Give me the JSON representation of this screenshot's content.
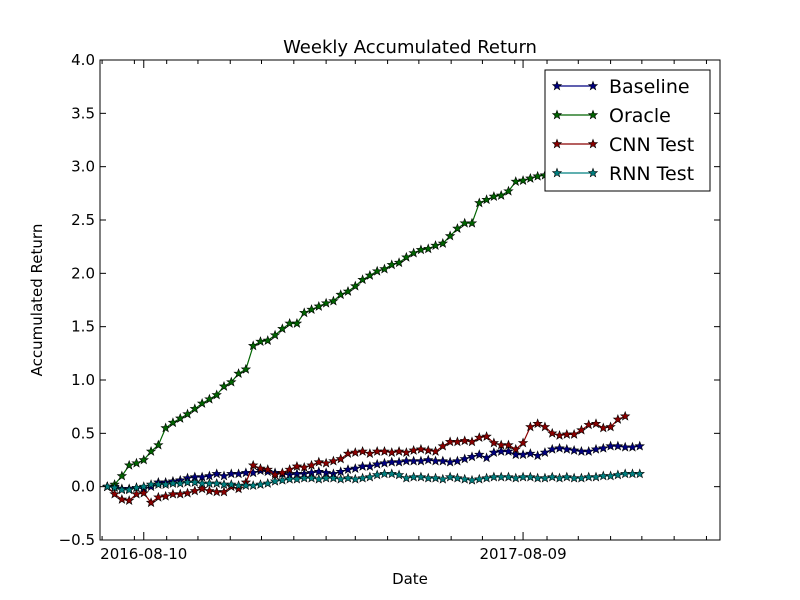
{
  "chart_data": {
    "type": "line",
    "title": "Weekly Accumulated Return",
    "xlabel": "Date",
    "ylabel": "Accumulated Return",
    "ylim": [
      -0.5,
      4.0
    ],
    "yticks": [
      "−0.5",
      "0.0",
      "0.5",
      "1.0",
      "1.5",
      "2.0",
      "2.5",
      "3.0",
      "3.5",
      "4.0"
    ],
    "ytick_values": [
      -0.5,
      0.0,
      0.5,
      1.0,
      1.5,
      2.0,
      2.5,
      3.0,
      3.5,
      4.0
    ],
    "xlim": [
      "2016-06-29",
      "2018-02-14"
    ],
    "xticks": [
      "2016-08-10",
      "2017-08-09"
    ],
    "x_start": "2016-07-06",
    "x_step_days": 7,
    "grid": false,
    "legend_position": "top-right",
    "series": [
      {
        "name": "Baseline",
        "color": "#000080",
        "marker": "star",
        "values": [
          0.0,
          0.0,
          -0.02,
          -0.02,
          -0.01,
          -0.02,
          0.0,
          0.04,
          0.04,
          0.05,
          0.06,
          0.08,
          0.09,
          0.09,
          0.1,
          0.12,
          0.1,
          0.12,
          0.12,
          0.13,
          0.13,
          0.15,
          0.14,
          0.13,
          0.12,
          0.11,
          0.12,
          0.12,
          0.13,
          0.14,
          0.13,
          0.12,
          0.14,
          0.16,
          0.17,
          0.19,
          0.19,
          0.21,
          0.22,
          0.23,
          0.23,
          0.24,
          0.24,
          0.24,
          0.25,
          0.24,
          0.24,
          0.23,
          0.24,
          0.26,
          0.28,
          0.3,
          0.27,
          0.32,
          0.33,
          0.33,
          0.3,
          0.3,
          0.31,
          0.29,
          0.32,
          0.35,
          0.36,
          0.35,
          0.34,
          0.33,
          0.33,
          0.35,
          0.36,
          0.38,
          0.38,
          0.37,
          0.37,
          0.38
        ]
      },
      {
        "name": "Oracle",
        "color": "#006400",
        "marker": "star",
        "values": [
          0.0,
          0.02,
          0.1,
          0.2,
          0.22,
          0.25,
          0.33,
          0.39,
          0.55,
          0.6,
          0.64,
          0.68,
          0.73,
          0.78,
          0.82,
          0.86,
          0.94,
          0.98,
          1.06,
          1.1,
          1.32,
          1.36,
          1.37,
          1.42,
          1.48,
          1.53,
          1.53,
          1.63,
          1.66,
          1.69,
          1.72,
          1.74,
          1.8,
          1.83,
          1.88,
          1.94,
          1.98,
          2.02,
          2.04,
          2.08,
          2.1,
          2.15,
          2.19,
          2.22,
          2.23,
          2.26,
          2.28,
          2.35,
          2.42,
          2.47,
          2.47,
          2.66,
          2.69,
          2.72,
          2.73,
          2.77,
          2.86,
          2.87,
          2.89,
          2.91,
          2.92,
          2.93
        ]
      },
      {
        "name": "CNN Test",
        "color": "#8b0000",
        "marker": "star",
        "values": [
          0.0,
          -0.07,
          -0.12,
          -0.13,
          -0.07,
          -0.06,
          -0.15,
          -0.1,
          -0.09,
          -0.07,
          -0.07,
          -0.06,
          -0.04,
          -0.02,
          -0.04,
          -0.05,
          -0.05,
          0.0,
          -0.02,
          0.04,
          0.2,
          0.17,
          0.16,
          0.11,
          0.13,
          0.16,
          0.19,
          0.18,
          0.2,
          0.23,
          0.22,
          0.24,
          0.26,
          0.31,
          0.32,
          0.33,
          0.31,
          0.33,
          0.33,
          0.32,
          0.33,
          0.32,
          0.34,
          0.35,
          0.34,
          0.33,
          0.38,
          0.42,
          0.42,
          0.43,
          0.42,
          0.46,
          0.47,
          0.41,
          0.39,
          0.39,
          0.35,
          0.41,
          0.56,
          0.59,
          0.56,
          0.5,
          0.48,
          0.49,
          0.49,
          0.53,
          0.58,
          0.59,
          0.55,
          0.56,
          0.63,
          0.66
        ]
      },
      {
        "name": "RNN Test",
        "color": "#008080",
        "marker": "star",
        "values": [
          0.0,
          -0.01,
          -0.03,
          -0.03,
          -0.01,
          0.0,
          0.02,
          0.02,
          0.02,
          0.03,
          0.03,
          0.04,
          0.04,
          0.03,
          0.03,
          0.03,
          0.02,
          0.02,
          0.01,
          0.01,
          0.01,
          0.02,
          0.03,
          0.05,
          0.06,
          0.07,
          0.07,
          0.08,
          0.08,
          0.07,
          0.08,
          0.08,
          0.07,
          0.08,
          0.07,
          0.08,
          0.09,
          0.11,
          0.12,
          0.12,
          0.11,
          0.08,
          0.09,
          0.09,
          0.08,
          0.08,
          0.07,
          0.09,
          0.08,
          0.07,
          0.06,
          0.07,
          0.08,
          0.09,
          0.09,
          0.09,
          0.08,
          0.09,
          0.09,
          0.08,
          0.08,
          0.09,
          0.08,
          0.09,
          0.08,
          0.08,
          0.09,
          0.09,
          0.1,
          0.1,
          0.11,
          0.12,
          0.12,
          0.12
        ]
      }
    ]
  }
}
